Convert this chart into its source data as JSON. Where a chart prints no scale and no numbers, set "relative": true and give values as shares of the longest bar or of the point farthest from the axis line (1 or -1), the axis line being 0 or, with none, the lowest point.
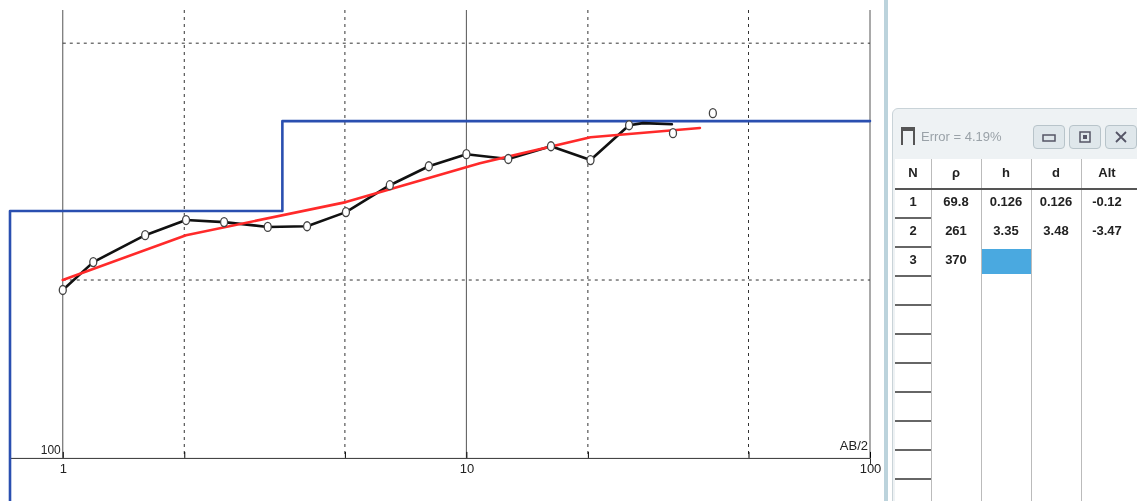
{
  "chart_data": [
    {
      "type": "line",
      "relative": true,
      "xlabel": "AB/2",
      "log": "x",
      "xlim": [
        0.74,
        100
      ],
      "xticks": [
        1,
        {
          "value": 2,
          "label": null
        },
        {
          "value": 5,
          "label": null
        },
        10,
        {
          "value": 20,
          "label": null
        },
        {
          "value": 50,
          "label": null
        },
        100
      ],
      "grid": "x",
      "annotations": [
        "100"
      ],
      "ref_lines": [
        {
          "axis": "y",
          "value": 0.516,
          "color": "#333333",
          "line_style": "dotted"
        },
        {
          "axis": "y",
          "value": 1.203,
          "color": "#333333",
          "line_style": "dotted"
        }
      ],
      "series": [
        {
          "type": "line",
          "color": "#2a4fb0",
          "marker": "none",
          "x": [
            0.74,
            0.74,
            3.5,
            3.5,
            100
          ],
          "values": [
            -0.125,
            0.716,
            0.716,
            0.977,
            0.977
          ]
        },
        {
          "type": "line",
          "color": "#111111",
          "marker": "none",
          "x": [
            1,
            1.19,
            1.6,
            2.02,
            2.51,
            3.22,
            4.03,
            5.03,
            6.46,
            8.07,
            10,
            12.7,
            16.2,
            20.3,
            25.3,
            27.4,
            32.3
          ],
          "values": [
            0.487,
            0.568,
            0.646,
            0.69,
            0.684,
            0.67,
            0.672,
            0.713,
            0.791,
            0.846,
            0.881,
            0.867,
            0.904,
            0.864,
            0.965,
            0.971,
            0.968
          ]
        },
        {
          "type": "line",
          "color": "#ff2a2a",
          "marker": "none",
          "x": [
            1,
            2.02,
            5.03,
            10.8,
            20.3,
            37.9
          ],
          "values": [
            0.516,
            0.646,
            0.742,
            0.855,
            0.93,
            0.957
          ]
        },
        {
          "type": "scatter",
          "color": "#444444",
          "marker": "circle",
          "x": [
            1,
            1.19,
            1.6,
            2.02,
            2.51,
            3.22,
            4.03,
            5.03,
            6.46,
            8.07,
            10,
            12.7,
            16.2,
            20.3,
            25.3,
            32.5,
            40.8
          ],
          "values": [
            0.487,
            0.568,
            0.646,
            0.69,
            0.684,
            0.67,
            0.672,
            0.713,
            0.791,
            0.846,
            0.881,
            0.867,
            0.904,
            0.864,
            0.965,
            0.942,
            1
          ]
        }
      ]
    },
    {
      "type": "other",
      "title": "Error = 4.19%",
      "annotations": [
        "N",
        "ρ",
        "h",
        "d",
        "Alt",
        "1",
        "69.8",
        "0.126",
        "0.126",
        "-0.12",
        "2",
        "261",
        "3.35",
        "3.48",
        "-3.47",
        "3",
        "370"
      ]
    }
  ]
}
